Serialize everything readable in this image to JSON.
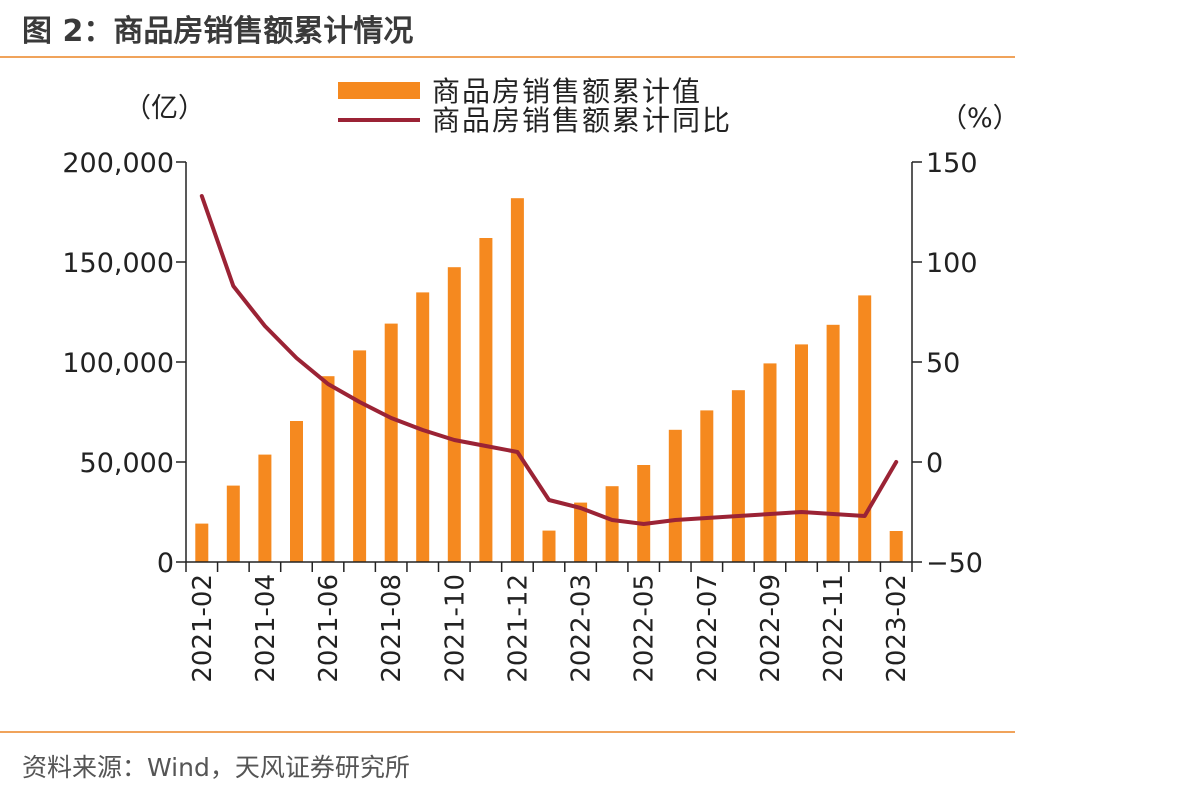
{
  "figure": {
    "title": "图 2：商品房销售额累计情况",
    "source": "资料来源：Wind，天风证券研究所"
  },
  "colors": {
    "bar": "#F5891F",
    "line": "#9B2335",
    "axis": "#222222",
    "rule": "#F0A35B"
  },
  "chart_data": {
    "type": "bar",
    "left_unit": "（亿）",
    "right_unit": "（%）",
    "categories": [
      "2021-02",
      "2021-03",
      "2021-04",
      "2021-05",
      "2021-06",
      "2021-07",
      "2021-08",
      "2021-09",
      "2021-10",
      "2021-11",
      "2021-12",
      "2022-02",
      "2022-03",
      "2022-04",
      "2022-05",
      "2022-06",
      "2022-07",
      "2022-08",
      "2022-09",
      "2022-10",
      "2022-11",
      "2022-12",
      "2023-02"
    ],
    "x_tick_labels": [
      "2021-02",
      "2021-04",
      "2021-06",
      "2021-08",
      "2021-10",
      "2021-12",
      "2022-03",
      "2022-05",
      "2022-07",
      "2022-09",
      "2022-11",
      "2023-02"
    ],
    "series": [
      {
        "name": "商品房销售额累计值",
        "type": "bar",
        "axis": "left",
        "values": [
          19200,
          38200,
          53700,
          70500,
          92900,
          105800,
          119200,
          134800,
          147400,
          162000,
          181900,
          15700,
          29700,
          37900,
          48500,
          66100,
          75800,
          85900,
          99300,
          108800,
          118600,
          133300,
          15500
        ]
      },
      {
        "name": "商品房销售额累计同比",
        "type": "line",
        "axis": "right",
        "values": [
          133,
          88,
          68,
          52,
          39,
          30,
          22,
          16,
          11,
          8,
          5,
          -19,
          -23,
          -29,
          -31,
          -29,
          -28,
          -27,
          -26,
          -25,
          -26,
          -27,
          0
        ]
      }
    ],
    "left_axis": {
      "ylim": [
        0,
        200000
      ],
      "ticks": [
        0,
        50000,
        100000,
        150000,
        200000
      ],
      "tick_labels": [
        "0",
        "50,000",
        "100,000",
        "150,000",
        "200,000"
      ]
    },
    "right_axis": {
      "ylim": [
        -50,
        150
      ],
      "ticks": [
        -50,
        0,
        50,
        100,
        150
      ],
      "tick_labels": [
        "−50",
        "0",
        "50",
        "100",
        "150"
      ]
    },
    "legend": {
      "position": "top-center",
      "labels": [
        "商品房销售额累计值",
        "商品房销售额累计同比"
      ]
    }
  }
}
